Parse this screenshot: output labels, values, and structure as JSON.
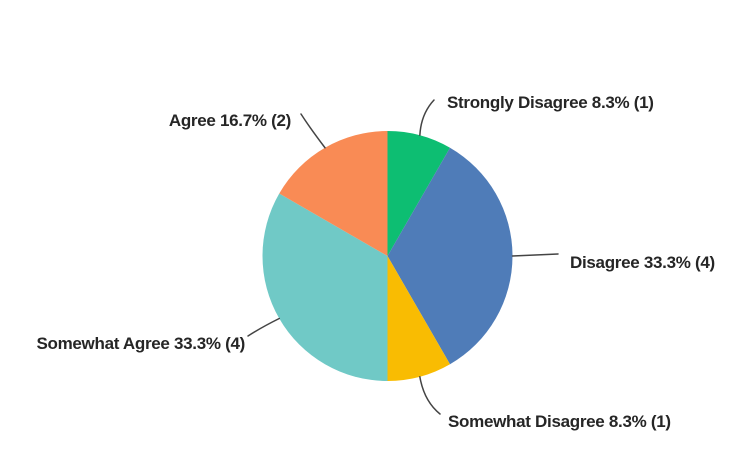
{
  "chart_data": {
    "type": "pie",
    "title": "",
    "categories": [
      "Strongly Disagree",
      "Disagree",
      "Somewhat Disagree",
      "Somewhat Agree",
      "Agree"
    ],
    "values_pct": [
      8.3,
      33.3,
      8.3,
      33.3,
      16.7
    ],
    "counts": [
      1,
      4,
      1,
      4,
      2
    ],
    "start_angle_deg": 0,
    "direction": "clockwise",
    "legend_position": "callout-labels",
    "background_color": "#FFFFFF",
    "label_color": "#262626",
    "leader_line_color": "#444444",
    "slices": [
      {
        "label": "Strongly Disagree",
        "pct": 8.3,
        "count": 1,
        "display": "Strongly Disagree 8.3% (1)",
        "color": "#0DBE72"
      },
      {
        "label": "Disagree",
        "pct": 33.3,
        "count": 4,
        "display": "Disagree 33.3% (4)",
        "color": "#4F7CB8"
      },
      {
        "label": "Somewhat Disagree",
        "pct": 8.3,
        "count": 1,
        "display": "Somewhat Disagree 8.3% (1)",
        "color": "#F9BC02"
      },
      {
        "label": "Somewhat Agree",
        "pct": 33.3,
        "count": 4,
        "display": "Somewhat Agree 33.3% (4)",
        "color": "#70C9C6"
      },
      {
        "label": "Agree",
        "pct": 16.7,
        "count": 2,
        "display": "Agree 16.7% (2)",
        "color": "#F98B55"
      }
    ]
  }
}
